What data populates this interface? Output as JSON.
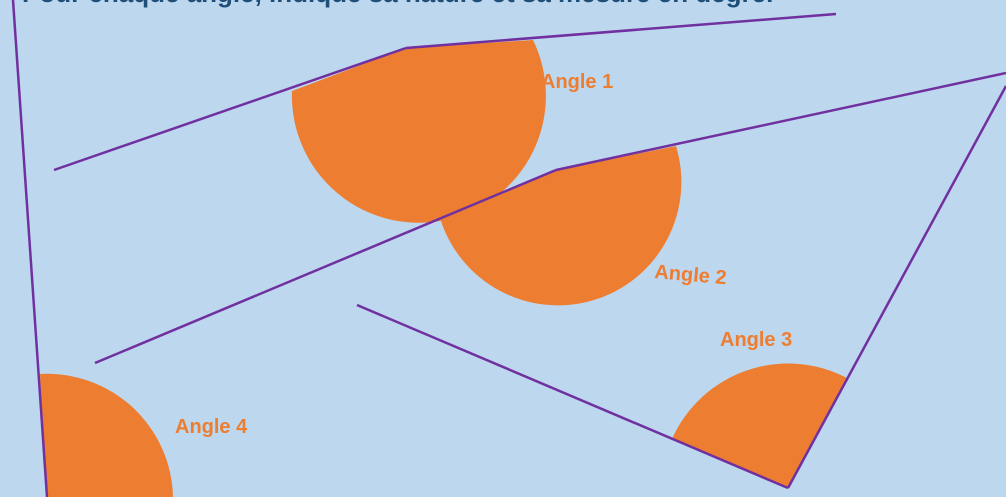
{
  "title": "Pour chaque angle, indique sa nature et sa mesure en degré.",
  "colors": {
    "background": "#bdd7ee",
    "line": "#7030a0",
    "arc_fill": "#ed7d31",
    "label": "#ed7d31",
    "title": "#1f4e79"
  },
  "angles": [
    {
      "label": "Angle 1"
    },
    {
      "label": "Angle 2"
    },
    {
      "label": "Angle 3"
    },
    {
      "label": "Angle 4"
    }
  ]
}
